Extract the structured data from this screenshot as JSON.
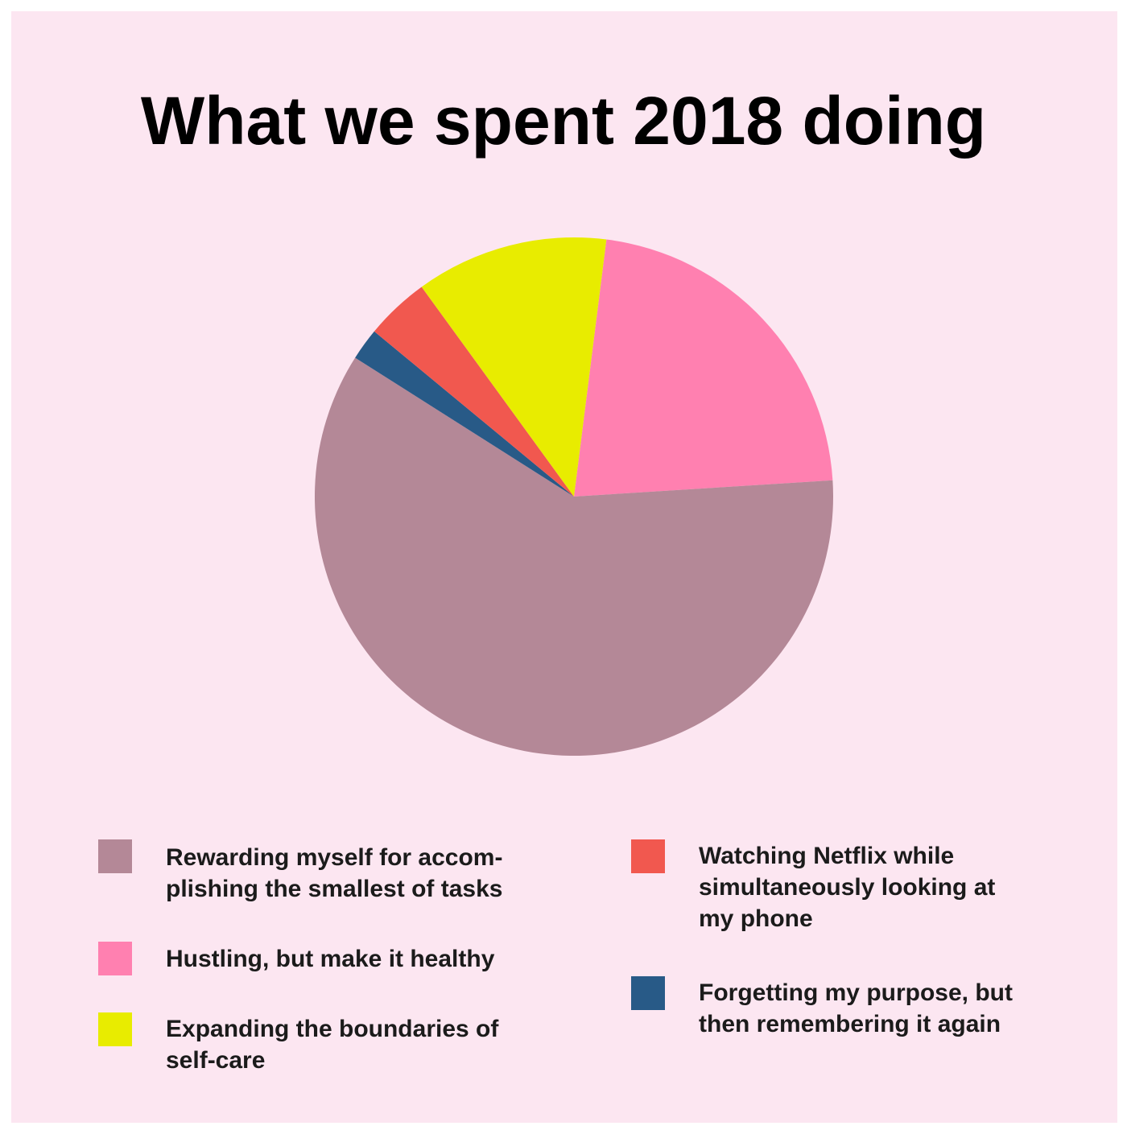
{
  "chart_data": {
    "type": "pie",
    "title": "What we spent 2018 doing",
    "slices": [
      {
        "label": "Rewarding myself for accom-\nplishing the smallest of tasks",
        "value": 60,
        "color": "#b48897"
      },
      {
        "label": "Hustling, but make it healthy",
        "value": 22,
        "color": "#ff80b0"
      },
      {
        "label": "Expanding the boundaries of\nself-care",
        "value": 12,
        "color": "#e8ec00"
      },
      {
        "label": "Watching Netflix while\nsimultaneously looking at\nmy phone",
        "value": 4,
        "color": "#f1584f"
      },
      {
        "label": "Forgetting my purpose, but\nthen remembering it again",
        "value": 2,
        "color": "#285a87"
      }
    ],
    "legend_position": "bottom"
  },
  "colors": {
    "background": "#fce6f1"
  }
}
